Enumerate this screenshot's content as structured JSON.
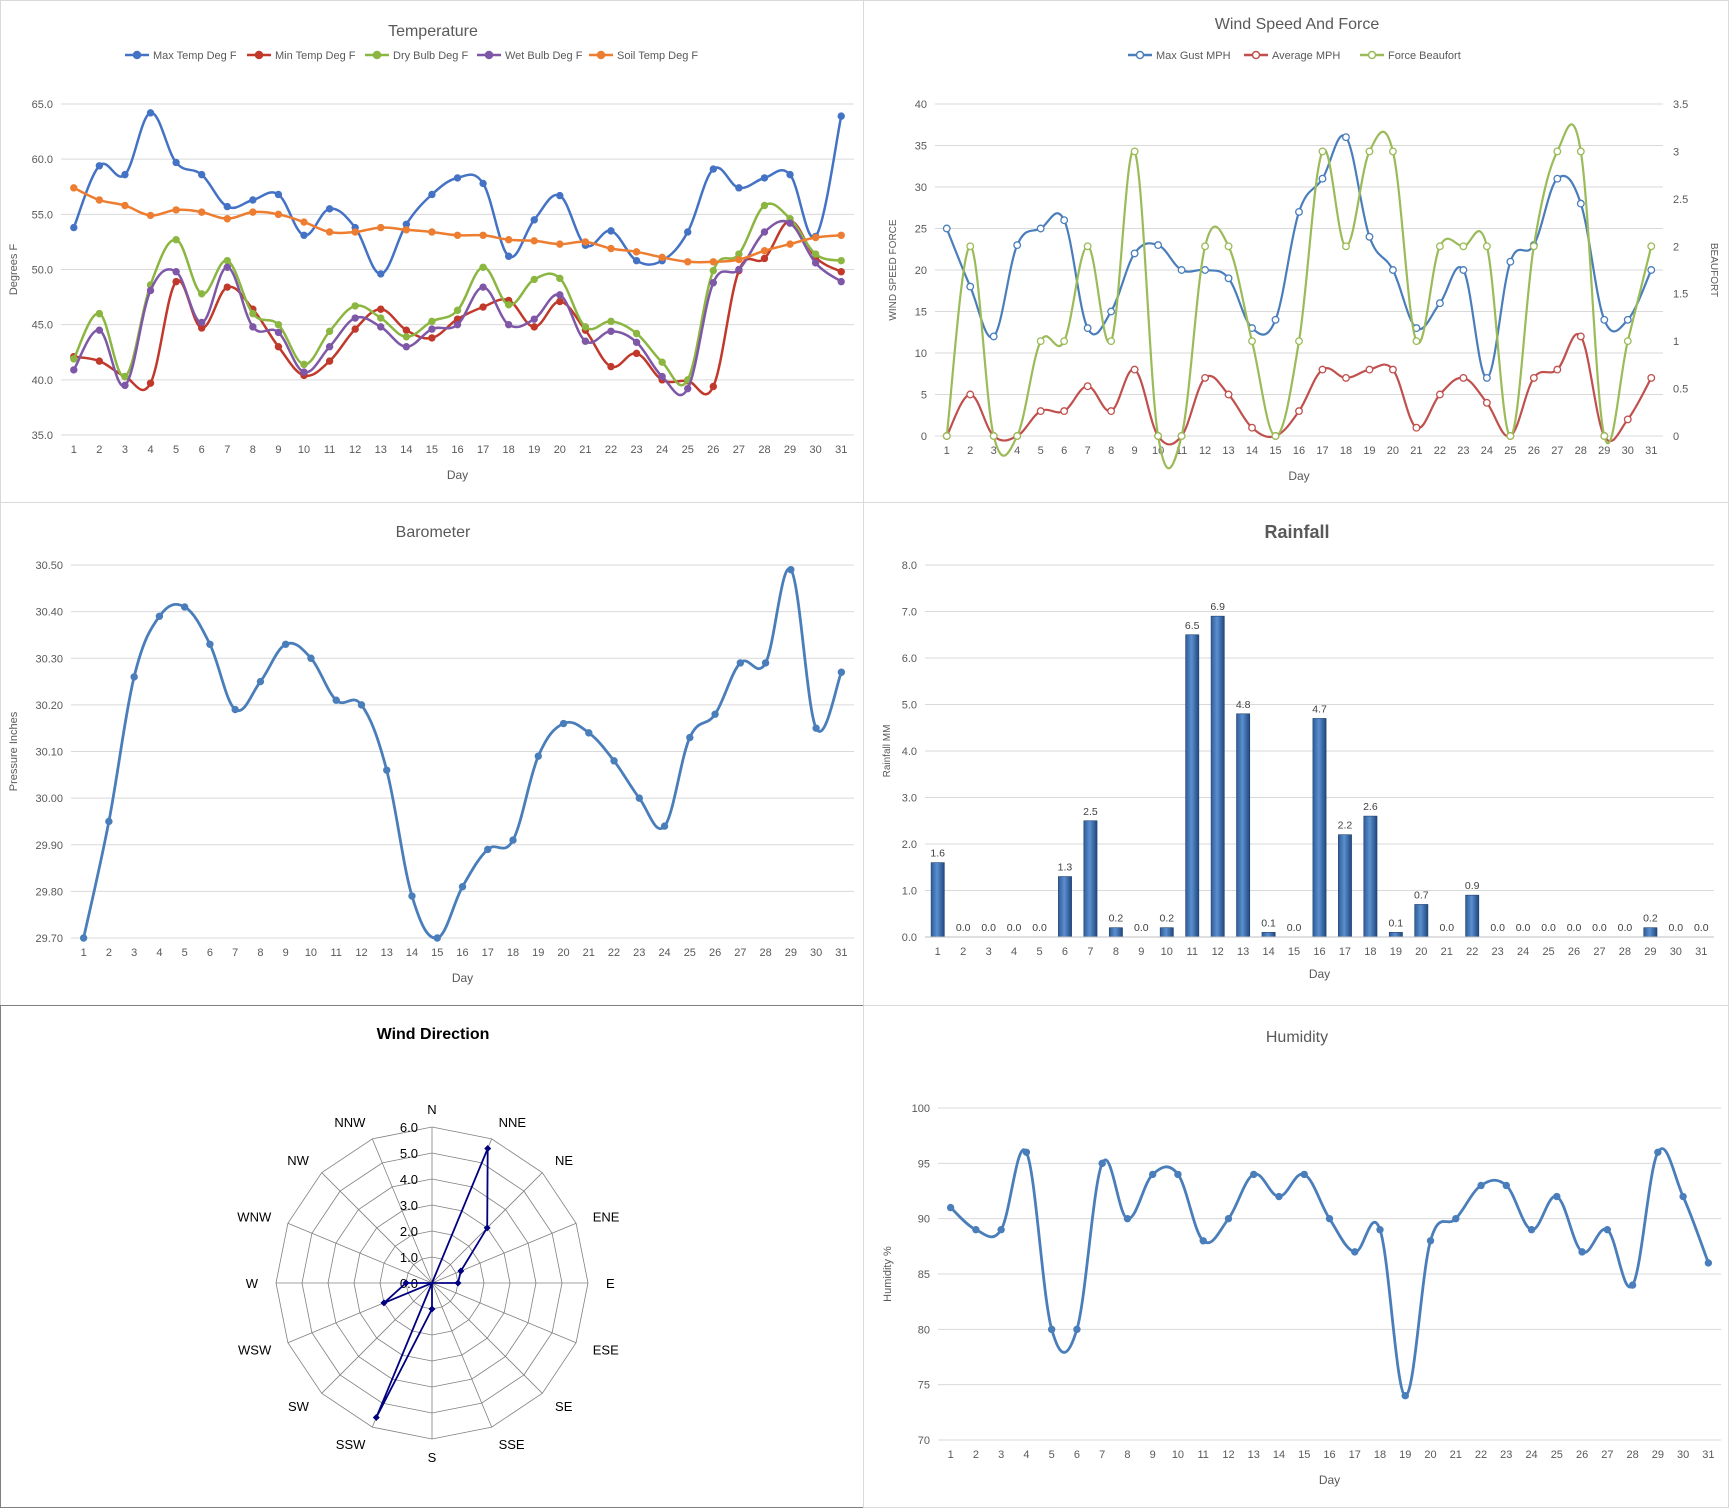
{
  "chart_data": [
    {
      "id": "temperature",
      "type": "line",
      "title": "Temperature",
      "xlabel": "Day",
      "ylabel": "Degrees F",
      "ylim": [
        35.0,
        65.0
      ],
      "yticks": [
        "35.0",
        "40.0",
        "45.0",
        "50.0",
        "55.0",
        "60.0",
        "65.0"
      ],
      "x": [
        1,
        2,
        3,
        4,
        5,
        6,
        7,
        8,
        9,
        10,
        11,
        12,
        13,
        14,
        15,
        16,
        17,
        18,
        19,
        20,
        21,
        22,
        23,
        24,
        25,
        26,
        27,
        28,
        29,
        30,
        31
      ],
      "grid": true,
      "legend": "top",
      "series": [
        {
          "name": "Max Temp Deg F",
          "color": "#4472c4",
          "values": [
            53.8,
            59.4,
            58.6,
            64.2,
            59.7,
            58.6,
            55.7,
            56.3,
            56.8,
            53.1,
            55.5,
            53.8,
            49.6,
            54.1,
            56.8,
            58.3,
            57.8,
            51.2,
            54.5,
            56.7,
            52.2,
            53.5,
            50.8,
            50.8,
            53.4,
            59.1,
            57.4,
            58.3,
            58.6,
            53.0,
            63.9
          ]
        },
        {
          "name": "Min Temp Deg F",
          "color": "#c0392b",
          "values": [
            42.1,
            41.7,
            40.3,
            39.7,
            48.9,
            44.7,
            48.4,
            46.4,
            43.0,
            40.4,
            41.7,
            44.6,
            46.4,
            44.5,
            43.8,
            45.5,
            46.6,
            47.2,
            44.8,
            47.1,
            44.5,
            41.2,
            42.4,
            40.0,
            39.9,
            39.4,
            49.9,
            51.0,
            54.4,
            51.1,
            49.8
          ]
        },
        {
          "name": "Dry Bulb Deg F",
          "color": "#8bb641",
          "values": [
            41.9,
            46.0,
            40.3,
            48.6,
            52.7,
            47.8,
            50.8,
            46.0,
            45.0,
            41.4,
            44.4,
            46.7,
            45.6,
            43.9,
            45.3,
            46.3,
            50.2,
            46.8,
            49.1,
            49.2,
            44.8,
            45.3,
            44.2,
            41.6,
            40.0,
            49.9,
            51.4,
            55.8,
            54.6,
            51.4,
            50.8
          ]
        },
        {
          "name": "Wet Bulb Deg F",
          "color": "#7e57a7",
          "values": [
            40.9,
            44.5,
            39.5,
            48.1,
            49.8,
            45.2,
            50.2,
            44.8,
            44.3,
            40.7,
            43.0,
            45.6,
            44.8,
            43.0,
            44.6,
            45.0,
            48.4,
            45.0,
            45.5,
            47.7,
            43.5,
            44.4,
            43.4,
            40.3,
            39.2,
            48.8,
            50.0,
            53.4,
            54.2,
            50.6,
            48.9
          ]
        },
        {
          "name": "Soil Temp Deg F",
          "color": "#ed7d31",
          "values": [
            57.4,
            56.3,
            55.8,
            54.9,
            55.4,
            55.2,
            54.6,
            55.2,
            55.0,
            54.3,
            53.4,
            53.4,
            53.8,
            53.6,
            53.4,
            53.1,
            53.1,
            52.7,
            52.6,
            52.3,
            52.5,
            51.9,
            51.6,
            51.1,
            50.7,
            50.7,
            50.9,
            51.7,
            52.3,
            52.9,
            53.1
          ]
        }
      ]
    },
    {
      "id": "wind_speed",
      "type": "line",
      "title": "Wind Speed And Force",
      "xlabel": "Day",
      "ylabel": "WIND SPEED FORCE",
      "ylabel_right": "BEAUFORT",
      "ylim": [
        0,
        40
      ],
      "ylim_right": [
        0,
        3.5
      ],
      "yticks": [
        "0",
        "5",
        "10",
        "15",
        "20",
        "25",
        "30",
        "35",
        "40"
      ],
      "yticks_right": [
        "0",
        "0.5",
        "1",
        "1.5",
        "2",
        "2.5",
        "3",
        "3.5"
      ],
      "x": [
        1,
        2,
        3,
        4,
        5,
        6,
        7,
        8,
        9,
        10,
        11,
        12,
        13,
        14,
        15,
        16,
        17,
        18,
        19,
        20,
        21,
        22,
        23,
        24,
        25,
        26,
        27,
        28,
        29,
        30,
        31
      ],
      "grid": true,
      "legend": "top",
      "series": [
        {
          "name": "Max Gust MPH",
          "axis": "left",
          "color": "#4a7ebb",
          "values": [
            25,
            18,
            12,
            23,
            25,
            26,
            13,
            15,
            22,
            23,
            20,
            20,
            19,
            13,
            14,
            27,
            31,
            36,
            24,
            20,
            13,
            16,
            20,
            7,
            21,
            23,
            31,
            28,
            14,
            14,
            20
          ]
        },
        {
          "name": "Average MPH",
          "axis": "left",
          "color": "#c0504d",
          "values": [
            0,
            5,
            0,
            0,
            3,
            3,
            6,
            3,
            8,
            0,
            0,
            7,
            5,
            1,
            0,
            3,
            8,
            7,
            8,
            8,
            1,
            5,
            7,
            4,
            0,
            7,
            8,
            12,
            0,
            2,
            7
          ]
        },
        {
          "name": "Force Beaufort",
          "axis": "right",
          "color": "#9bbb59",
          "values": [
            0,
            2,
            0,
            0,
            1,
            1,
            2,
            1,
            3,
            0,
            0,
            2,
            2,
            1,
            0,
            1,
            3,
            2,
            3,
            3,
            1,
            2,
            2,
            2,
            0,
            2,
            3,
            3,
            0,
            1,
            2
          ]
        }
      ]
    },
    {
      "id": "barometer",
      "type": "line",
      "title": "Barometer",
      "xlabel": "Day",
      "ylabel": "Pressure Inches",
      "ylim": [
        29.7,
        30.5
      ],
      "yticks": [
        "29.70",
        "29.80",
        "29.90",
        "30.00",
        "30.10",
        "30.20",
        "30.30",
        "30.40",
        "30.50"
      ],
      "x": [
        1,
        2,
        3,
        4,
        5,
        6,
        7,
        8,
        9,
        10,
        11,
        12,
        13,
        14,
        15,
        16,
        17,
        18,
        19,
        20,
        21,
        22,
        23,
        24,
        25,
        26,
        27,
        28,
        29,
        30,
        31
      ],
      "grid": true,
      "series": [
        {
          "name": "",
          "color": "#4a7ebb",
          "values": [
            29.7,
            29.95,
            30.26,
            30.39,
            30.41,
            30.33,
            30.19,
            30.25,
            30.33,
            30.3,
            30.21,
            30.2,
            30.06,
            29.79,
            29.7,
            29.81,
            29.89,
            29.91,
            30.09,
            30.16,
            30.14,
            30.08,
            30.0,
            29.94,
            30.13,
            30.18,
            30.29,
            30.29,
            30.49,
            30.15,
            30.27
          ]
        }
      ]
    },
    {
      "id": "rainfall",
      "type": "bar",
      "title": "Rainfall",
      "xlabel": "Day",
      "ylabel": "Rainfall MM",
      "ylim": [
        0,
        8
      ],
      "yticks": [
        "0.0",
        "1.0",
        "2.0",
        "3.0",
        "4.0",
        "5.0",
        "6.0",
        "7.0",
        "8.0"
      ],
      "categories": [
        "1",
        "2",
        "3",
        "4",
        "5",
        "6",
        "7",
        "8",
        "9",
        "10",
        "11",
        "12",
        "13",
        "14",
        "15",
        "16",
        "17",
        "18",
        "19",
        "20",
        "21",
        "22",
        "23",
        "24",
        "25",
        "26",
        "27",
        "28",
        "29",
        "30",
        "31"
      ],
      "values": [
        1.6,
        0.0,
        0.0,
        0.0,
        0.0,
        1.3,
        2.5,
        0.2,
        0.0,
        0.2,
        6.5,
        6.9,
        4.8,
        0.1,
        0.0,
        4.7,
        2.2,
        2.6,
        0.1,
        0.7,
        0.0,
        0.9,
        0.0,
        0.0,
        0.0,
        0.0,
        0.0,
        0.0,
        0.2,
        0.0,
        0.0
      ],
      "labels": [
        "1.6",
        "0.0",
        "0.0",
        "0.0",
        "0.0",
        "1.3",
        "2.5",
        "0.2",
        "0.0",
        "0.2",
        "6.5",
        "6.9",
        "4.8",
        "0.1",
        "0.0",
        "4.7",
        "2.2",
        "2.6",
        "0.1",
        "0.7",
        "0.0",
        "0.9",
        "0.0",
        "0.0",
        "0.0",
        "0.0",
        "0.0",
        "0.0",
        "0.2",
        "0.0",
        "0.0"
      ],
      "color": "#4f81bd",
      "grid": true
    },
    {
      "id": "wind_direction",
      "type": "radar",
      "title": "Wind Direction",
      "categories": [
        "N",
        "NNE",
        "NE",
        "ENE",
        "E",
        "ESE",
        "SE",
        "SSE",
        "S",
        "SSW",
        "SW",
        "WSW",
        "W",
        "WNW",
        "NW",
        "NNW"
      ],
      "values": [
        0,
        5.6,
        3.0,
        1.2,
        1.0,
        0,
        0,
        0,
        1.0,
        5.6,
        0,
        2.0,
        1.0,
        0,
        0,
        0
      ],
      "rlim": [
        0,
        6
      ],
      "rticks": [
        "0.0",
        "1.0",
        "2.0",
        "3.0",
        "4.0",
        "5.0",
        "6.0"
      ],
      "color": "#000080",
      "grid": true
    },
    {
      "id": "humidity",
      "type": "line",
      "title": "Humidity",
      "xlabel": "Day",
      "ylabel": "Humidity %",
      "ylim": [
        70,
        100
      ],
      "yticks": [
        "70",
        "75",
        "80",
        "85",
        "90",
        "95",
        "100"
      ],
      "x": [
        1,
        2,
        3,
        4,
        5,
        6,
        7,
        8,
        9,
        10,
        11,
        12,
        13,
        14,
        15,
        16,
        17,
        18,
        19,
        20,
        21,
        22,
        23,
        24,
        25,
        26,
        27,
        28,
        29,
        30,
        31
      ],
      "grid": true,
      "series": [
        {
          "name": "",
          "color": "#4a7ebb",
          "values": [
            91,
            89,
            89,
            96,
            80,
            80,
            95,
            90,
            94,
            94,
            88,
            90,
            94,
            92,
            94,
            90,
            87,
            89,
            74,
            88,
            90,
            93,
            93,
            89,
            92,
            87,
            89,
            84,
            96,
            92,
            86
          ]
        }
      ]
    }
  ]
}
